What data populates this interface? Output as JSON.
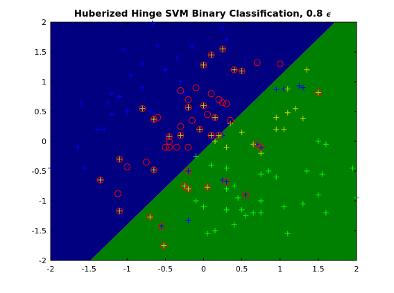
{
  "chart_data": {
    "type": "scatter",
    "title": "Huberized Hinge SVM Binary Classification, 0.8",
    "title_symbol": "ϵ",
    "xlim": [
      -2,
      2
    ],
    "ylim": [
      -2,
      2
    ],
    "xticks": [
      -2,
      -1.5,
      -1,
      -0.5,
      0,
      0.5,
      1,
      1.5,
      2
    ],
    "yticks": [
      -2,
      -1.5,
      -1,
      -0.5,
      0,
      0.5,
      1,
      1.5,
      2
    ],
    "decision_boundary": {
      "x": [
        -1.48,
        1.72
      ],
      "y": [
        -2,
        2
      ]
    },
    "region_colors": [
      "#000080",
      "#008000"
    ],
    "series": [
      {
        "marker": "plus",
        "color": "#0000ff",
        "x": [
          -1.6,
          -1.4,
          -1.3,
          -1.05,
          -0.95,
          -1.1,
          -0.8,
          -0.8,
          -0.67,
          -0.6,
          -0.5,
          -0.35,
          -0.3,
          -0.25,
          -0.15,
          0.25,
          0.3,
          -1.2,
          -1.25,
          -1.0,
          -0.7,
          -1.65,
          -1.55,
          -2.0,
          -1.2,
          -0.1,
          0.95,
          1.05,
          1.25,
          1.3,
          0.7,
          0.75,
          0.3,
          0.25,
          -0.2,
          -0.2,
          -0.55,
          0.25,
          0.1,
          0.55
        ],
        "values": [
          0.65,
          0.2,
          0.2,
          1.55,
          1.1,
          0.75,
          1.3,
          0.9,
          1.98,
          1.6,
          1.2,
          1.4,
          1.0,
          0.8,
          1.6,
          1.9,
          1.7,
          0.8,
          0.65,
          0.5,
          0.5,
          -0.1,
          -0.45,
          -0.45,
          0.45,
          0.5,
          0.87,
          0.88,
          0.93,
          0.9,
          -0.05,
          -0.1,
          -0.68,
          -0.65,
          -0.5,
          -1.33,
          -1.42,
          0.1,
          0.05,
          -0.9
        ]
      },
      {
        "marker": "plus",
        "color": "#00ff00",
        "x": [
          1.5,
          1.6,
          1.95,
          2.0,
          1.55,
          1.5,
          1.6,
          1.35,
          1.3,
          1.1,
          1.05,
          0.95,
          0.85,
          0.75,
          0.75,
          0.75,
          0.65,
          0.55,
          0.5,
          0.4,
          0.45,
          0.4,
          0.3,
          0.3,
          0.15,
          0.05,
          0.0,
          -0.1,
          -0.1,
          0.1,
          0.3
        ],
        "values": [
          0.0,
          -0.05,
          -0.45,
          -0.95,
          -0.55,
          -0.9,
          -1.2,
          -0.5,
          -1.05,
          -1.55,
          -1.1,
          -0.6,
          -0.5,
          -0.55,
          -1.0,
          -1.2,
          -1.2,
          -1.25,
          -1.15,
          -1.4,
          -0.95,
          -0.75,
          -0.8,
          -1.15,
          -1.5,
          -1.55,
          -1.1,
          -1.0,
          -0.25,
          -0.4,
          -0.45
        ]
      },
      {
        "marker": "plus",
        "color": "#c8d400",
        "x": [
          0.25,
          0.1,
          0.0,
          -0.8,
          -0.65,
          -0.2,
          0.0,
          0.15,
          -0.3,
          -0.45,
          -0.05,
          0.1,
          0.2,
          -1.1,
          -1.35,
          -0.65,
          -1.1,
          -0.7,
          -0.52,
          -0.25,
          -0.2,
          0.05,
          0.5,
          0.4,
          1.1,
          1.35,
          1.5,
          1.2,
          1.1,
          1.3,
          0.95,
          1.05,
          0.95,
          0.65,
          0.5,
          0.35,
          0.3,
          0.15,
          0.75
        ],
        "values": [
          1.55,
          1.45,
          1.28,
          0.55,
          0.37,
          0.57,
          0.6,
          0.4,
          0.1,
          0.08,
          0.2,
          0.1,
          0.1,
          -0.3,
          -0.65,
          -0.48,
          -1.17,
          -1.27,
          -1.75,
          -0.75,
          -0.8,
          -0.77,
          1.18,
          1.2,
          0.88,
          1.2,
          0.82,
          0.55,
          0.48,
          0.38,
          0.4,
          0.2,
          0.2,
          -0.05,
          0.15,
          0.3,
          -0.1,
          0.0,
          -0.2
        ]
      },
      {
        "marker": "circle",
        "color": "#ff0000",
        "x": [
          0.25,
          0.1,
          0.0,
          -0.8,
          -0.65,
          -0.2,
          0.0,
          0.15,
          -0.3,
          -0.45,
          -0.05,
          0.1,
          0.2,
          -1.1,
          -1.35,
          -0.65,
          -1.1,
          -0.7,
          -0.55,
          -0.52,
          -0.25,
          -0.2,
          0.05,
          0.5,
          0.4,
          0.7,
          1.0,
          -0.3,
          -0.1,
          -0.2,
          0.1,
          0.2,
          0.25,
          0.3,
          -0.15,
          -0.3,
          0.05,
          -0.45,
          -0.5,
          -0.45,
          -0.35,
          -0.2,
          -0.75,
          -1.0,
          -1.12,
          -0.6,
          0.35,
          1.5,
          0.7,
          0.75,
          0.3,
          0.55,
          -0.2
        ],
        "values": [
          1.55,
          1.45,
          1.28,
          0.55,
          0.37,
          0.57,
          0.6,
          0.4,
          0.1,
          0.08,
          0.2,
          0.1,
          0.1,
          -0.3,
          -0.65,
          -0.48,
          -1.17,
          -1.27,
          -1.43,
          -1.75,
          -0.75,
          -0.8,
          -0.77,
          1.18,
          1.2,
          1.32,
          1.3,
          0.85,
          0.9,
          0.7,
          0.8,
          0.7,
          0.65,
          0.63,
          0.35,
          0.25,
          0.45,
          0.0,
          -0.1,
          -0.1,
          -0.1,
          -0.1,
          -0.35,
          -0.43,
          -0.88,
          0.4,
          0.35,
          0.82,
          -0.05,
          -0.1,
          -0.68,
          -0.9,
          -0.5
        ]
      }
    ]
  }
}
